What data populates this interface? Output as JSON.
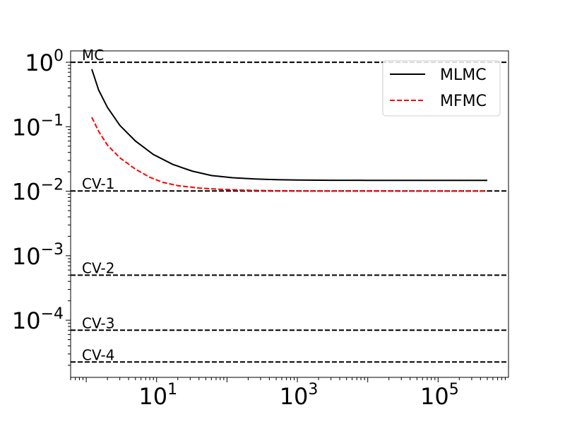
{
  "chart_data": {
    "type": "line",
    "title": "",
    "xlabel": "",
    "ylabel": "",
    "xscale": "log",
    "yscale": "log",
    "xlim": [
      0.6,
      1000000
    ],
    "ylim": [
      1.3e-05,
      1.5
    ],
    "grid": false,
    "legend_position": "top-right",
    "x_ticks": [
      {
        "value": 10,
        "base": "10",
        "exp": "1"
      },
      {
        "value": 1000,
        "base": "10",
        "exp": "3"
      },
      {
        "value": 100000,
        "base": "10",
        "exp": "5"
      }
    ],
    "y_ticks": [
      {
        "value": 1,
        "base": "10",
        "exp": "0"
      },
      {
        "value": 0.1,
        "base": "10",
        "exp": "−1"
      },
      {
        "value": 0.01,
        "base": "10",
        "exp": "−2"
      },
      {
        "value": 0.001,
        "base": "10",
        "exp": "−3"
      },
      {
        "value": 0.0001,
        "base": "10",
        "exp": "−4"
      }
    ],
    "reference_lines": [
      {
        "label": "MC",
        "value": 1.0
      },
      {
        "label": "CV-1",
        "value": 0.0101
      },
      {
        "label": "CV-2",
        "value": 0.0005
      },
      {
        "label": "CV-3",
        "value": 7e-05
      },
      {
        "label": "CV-4",
        "value": 2.25e-05
      }
    ],
    "series": [
      {
        "name": "MLMC",
        "color": "#000000",
        "style": "solid",
        "x": [
          1.2,
          1.5,
          2,
          3,
          5,
          9,
          17,
          32,
          60,
          120,
          250,
          500,
          1000,
          3000,
          10000,
          50000,
          200000,
          500000
        ],
        "y": [
          0.78,
          0.37,
          0.2,
          0.105,
          0.06,
          0.037,
          0.026,
          0.0205,
          0.0175,
          0.0162,
          0.0155,
          0.0151,
          0.0149,
          0.0148,
          0.01475,
          0.01473,
          0.01472,
          0.01472
        ]
      },
      {
        "name": "MFMC",
        "color": "#ff0000",
        "style": "dashed",
        "x": [
          1.2,
          1.5,
          2,
          3,
          5,
          8,
          12,
          20,
          40,
          80,
          160,
          300,
          600,
          1500,
          5000,
          20000,
          100000,
          500000
        ],
        "y": [
          0.14,
          0.085,
          0.052,
          0.033,
          0.022,
          0.0165,
          0.0138,
          0.0122,
          0.0112,
          0.0107,
          0.0104,
          0.01025,
          0.01015,
          0.0101,
          0.01008,
          0.01007,
          0.01006,
          0.01006
        ]
      }
    ]
  }
}
